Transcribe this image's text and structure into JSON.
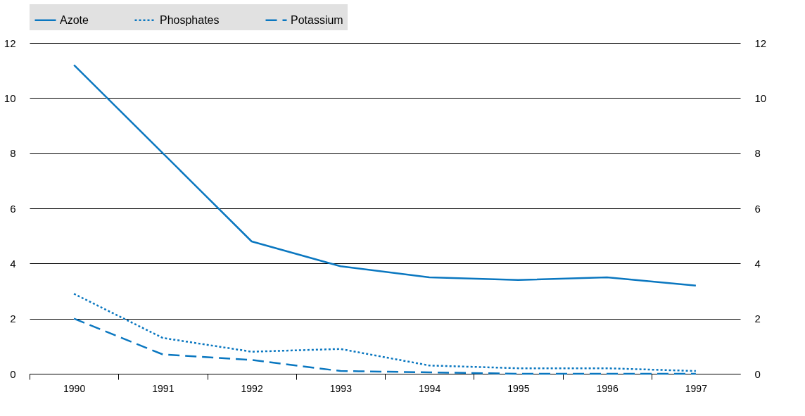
{
  "chart_data": {
    "type": "line",
    "categories": [
      "1990",
      "1991",
      "1992",
      "1993",
      "1994",
      "1995",
      "1996",
      "1997"
    ],
    "series": [
      {
        "name": "Azote",
        "color": "#0a77c0",
        "line_style": "solid",
        "values": [
          11.2,
          8.0,
          4.8,
          3.9,
          3.5,
          3.4,
          3.5,
          3.2
        ]
      },
      {
        "name": "Phosphates",
        "color": "#0a77c0",
        "line_style": "dotted",
        "values": [
          2.9,
          1.3,
          0.8,
          0.9,
          0.3,
          0.2,
          0.2,
          0.1
        ]
      },
      {
        "name": "Potassium",
        "color": "#0a77c0",
        "line_style": "dashed",
        "values": [
          2.0,
          0.7,
          0.5,
          0.1,
          0.05,
          0,
          0,
          0
        ]
      }
    ],
    "ylim": [
      0,
      12
    ],
    "yticks": [
      0,
      2,
      4,
      6,
      8,
      10,
      12
    ],
    "y2lim": [
      0,
      12
    ],
    "y2ticks": [
      0,
      2,
      4,
      6,
      8,
      10,
      12
    ],
    "grid": "y",
    "legend": "top",
    "marker": "none"
  }
}
